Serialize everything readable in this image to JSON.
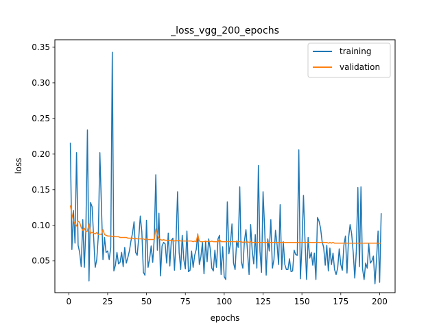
{
  "chart_data": {
    "type": "line",
    "title": "_loss_vgg_200_epochs",
    "xlabel": "epochs",
    "ylabel": "loss",
    "xlim": [
      -8.95,
      209.95
    ],
    "ylim": [
      0.0055,
      0.3605
    ],
    "xticks": [
      0,
      25,
      50,
      75,
      100,
      125,
      150,
      175,
      200
    ],
    "yticks": [
      0.05,
      0.1,
      0.15,
      0.2,
      0.25,
      0.3,
      0.35
    ],
    "ytick_labels": [
      "0.05",
      "0.10",
      "0.15",
      "0.20",
      "0.25",
      "0.30",
      "0.35"
    ],
    "grid": false,
    "legend_position": "top-right",
    "series": [
      {
        "name": "training",
        "color": "#1f77b4",
        "x": [
          1,
          2,
          3,
          4,
          5,
          6,
          7,
          8,
          9,
          10,
          11,
          12,
          13,
          14,
          15,
          16,
          17,
          18,
          19,
          20,
          21,
          22,
          23,
          24,
          25,
          26,
          27,
          28,
          29,
          30,
          31,
          32,
          33,
          34,
          35,
          36,
          37,
          38,
          39,
          40,
          41,
          42,
          43,
          44,
          45,
          46,
          47,
          48,
          49,
          50,
          51,
          52,
          53,
          54,
          55,
          56,
          57,
          58,
          59,
          60,
          61,
          62,
          63,
          64,
          65,
          66,
          67,
          68,
          69,
          70,
          71,
          72,
          73,
          74,
          75,
          76,
          77,
          78,
          79,
          80,
          81,
          82,
          83,
          84,
          85,
          86,
          87,
          88,
          89,
          90,
          91,
          92,
          93,
          94,
          95,
          96,
          97,
          98,
          99,
          100,
          101,
          102,
          103,
          104,
          105,
          106,
          107,
          108,
          109,
          110,
          111,
          112,
          113,
          114,
          115,
          116,
          117,
          118,
          119,
          120,
          121,
          122,
          123,
          124,
          125,
          126,
          127,
          128,
          129,
          130,
          131,
          132,
          133,
          134,
          135,
          136,
          137,
          138,
          139,
          140,
          141,
          142,
          143,
          144,
          145,
          146,
          147,
          148,
          149,
          150,
          151,
          152,
          153,
          154,
          155,
          156,
          157,
          158,
          159,
          160,
          161,
          162,
          163,
          164,
          165,
          166,
          167,
          168,
          169,
          170,
          171,
          172,
          173,
          174,
          175,
          176,
          177,
          178,
          179,
          180,
          181,
          182,
          183,
          184,
          185,
          186,
          187,
          188,
          189,
          190,
          191,
          192,
          193,
          194,
          195,
          196,
          197,
          198,
          199,
          200,
          201
        ],
        "y": [
          0.216,
          0.066,
          0.121,
          0.075,
          0.202,
          0.072,
          0.062,
          0.042,
          0.108,
          0.041,
          0.095,
          0.234,
          0.022,
          0.132,
          0.126,
          0.083,
          0.041,
          0.052,
          0.085,
          0.202,
          0.128,
          0.052,
          0.083,
          0.062,
          0.064,
          0.052,
          0.069,
          0.343,
          0.036,
          0.044,
          0.062,
          0.046,
          0.048,
          0.062,
          0.042,
          0.069,
          0.047,
          0.055,
          0.064,
          0.078,
          0.089,
          0.105,
          0.062,
          0.058,
          0.082,
          0.113,
          0.091,
          0.034,
          0.03,
          0.107,
          0.041,
          0.053,
          0.071,
          0.048,
          0.082,
          0.171,
          0.065,
          0.117,
          0.029,
          0.071,
          0.076,
          0.074,
          0.047,
          0.089,
          0.043,
          0.079,
          0.082,
          0.037,
          0.079,
          0.147,
          0.062,
          0.038,
          0.086,
          0.052,
          0.039,
          0.092,
          0.035,
          0.037,
          0.064,
          0.041,
          0.058,
          0.066,
          0.088,
          0.045,
          0.056,
          0.076,
          0.032,
          0.077,
          0.049,
          0.081,
          0.067,
          0.04,
          0.036,
          0.065,
          0.041,
          0.081,
          0.086,
          0.031,
          0.07,
          0.028,
          0.024,
          0.133,
          0.06,
          0.074,
          0.102,
          0.047,
          0.038,
          0.078,
          0.069,
          0.154,
          0.049,
          0.04,
          0.078,
          0.094,
          0.063,
          0.031,
          0.101,
          0.065,
          0.046,
          0.087,
          0.04,
          0.184,
          0.064,
          0.034,
          0.147,
          0.097,
          0.03,
          0.081,
          0.064,
          0.108,
          0.04,
          0.052,
          0.093,
          0.073,
          0.045,
          0.129,
          0.038,
          0.077,
          0.045,
          0.038,
          0.038,
          0.053,
          0.035,
          0.036,
          0.065,
          0.059,
          0.058,
          0.206,
          0.025,
          0.07,
          0.142,
          0.078,
          0.024,
          0.083,
          0.054,
          0.062,
          0.044,
          0.061,
          0.024,
          0.111,
          0.106,
          0.096,
          0.077,
          0.069,
          0.044,
          0.072,
          0.036,
          0.068,
          0.045,
          0.061,
          0.038,
          0.031,
          0.04,
          0.067,
          0.045,
          0.037,
          0.072,
          0.085,
          0.033,
          0.082,
          0.101,
          0.088,
          0.062,
          0.026,
          0.064,
          0.153,
          0.042,
          0.154,
          0.039,
          0.024,
          0.047,
          0.04,
          0.074,
          0.047,
          0.05,
          0.057,
          0.018,
          0.052,
          0.092,
          0.02,
          0.117
        ]
      },
      {
        "name": "validation",
        "color": "#ff7f0e",
        "x": [
          1,
          2,
          3,
          4,
          5,
          6,
          7,
          8,
          9,
          10,
          11,
          12,
          13,
          14,
          15,
          16,
          17,
          18,
          19,
          20,
          21,
          22,
          23,
          24,
          25,
          26,
          27,
          28,
          29,
          30,
          31,
          32,
          33,
          34,
          35,
          36,
          37,
          38,
          39,
          40,
          41,
          42,
          43,
          44,
          45,
          46,
          47,
          48,
          49,
          50,
          51,
          52,
          53,
          54,
          55,
          56,
          57,
          58,
          59,
          60,
          61,
          62,
          63,
          64,
          65,
          66,
          67,
          68,
          69,
          70,
          71,
          72,
          73,
          74,
          75,
          76,
          77,
          78,
          79,
          80,
          81,
          82,
          83,
          84,
          85,
          86,
          87,
          88,
          89,
          90,
          91,
          92,
          93,
          94,
          95,
          96,
          97,
          98,
          99,
          100,
          101,
          102,
          103,
          104,
          105,
          106,
          107,
          108,
          109,
          110,
          111,
          112,
          113,
          114,
          115,
          116,
          117,
          118,
          119,
          120,
          121,
          122,
          123,
          124,
          125,
          126,
          127,
          128,
          129,
          130,
          131,
          132,
          133,
          134,
          135,
          136,
          137,
          138,
          139,
          140,
          141,
          142,
          143,
          144,
          145,
          146,
          147,
          148,
          149,
          150,
          151,
          152,
          153,
          154,
          155,
          156,
          157,
          158,
          159,
          160,
          161,
          162,
          163,
          164,
          165,
          166,
          167,
          168,
          169,
          170,
          171,
          172,
          173,
          174,
          175,
          176,
          177,
          178,
          179,
          180,
          181,
          182,
          183,
          184,
          185,
          186,
          187,
          188,
          189,
          190,
          191,
          192,
          193,
          194,
          195,
          196,
          197,
          198,
          199,
          200,
          201
        ],
        "y": [
          0.128,
          0.116,
          0.107,
          0.102,
          0.099,
          0.106,
          0.104,
          0.097,
          0.093,
          0.096,
          0.091,
          0.092,
          0.102,
          0.089,
          0.09,
          0.089,
          0.088,
          0.09,
          0.087,
          0.088,
          0.087,
          0.094,
          0.087,
          0.086,
          0.085,
          0.085,
          0.085,
          0.084,
          0.085,
          0.084,
          0.084,
          0.084,
          0.083,
          0.083,
          0.083,
          0.083,
          0.083,
          0.082,
          0.082,
          0.082,
          0.082,
          0.081,
          0.082,
          0.081,
          0.081,
          0.081,
          0.081,
          0.081,
          0.08,
          0.081,
          0.08,
          0.08,
          0.08,
          0.08,
          0.08,
          0.095,
          0.087,
          0.082,
          0.08,
          0.079,
          0.08,
          0.079,
          0.079,
          0.079,
          0.079,
          0.079,
          0.079,
          0.078,
          0.079,
          0.078,
          0.079,
          0.078,
          0.078,
          0.078,
          0.078,
          0.078,
          0.078,
          0.078,
          0.078,
          0.077,
          0.078,
          0.077,
          0.087,
          0.078,
          0.077,
          0.077,
          0.077,
          0.078,
          0.077,
          0.078,
          0.077,
          0.078,
          0.077,
          0.077,
          0.077,
          0.077,
          0.08,
          0.077,
          0.077,
          0.077,
          0.077,
          0.077,
          0.077,
          0.077,
          0.077,
          0.077,
          0.077,
          0.077,
          0.077,
          0.077,
          0.077,
          0.076,
          0.077,
          0.076,
          0.077,
          0.076,
          0.077,
          0.076,
          0.076,
          0.076,
          0.076,
          0.076,
          0.076,
          0.076,
          0.076,
          0.076,
          0.076,
          0.076,
          0.076,
          0.076,
          0.076,
          0.076,
          0.076,
          0.076,
          0.076,
          0.076,
          0.076,
          0.076,
          0.076,
          0.076,
          0.076,
          0.076,
          0.076,
          0.076,
          0.076,
          0.076,
          0.076,
          0.076,
          0.076,
          0.076,
          0.076,
          0.076,
          0.076,
          0.076,
          0.076,
          0.076,
          0.076,
          0.076,
          0.076,
          0.076,
          0.076,
          0.076,
          0.076,
          0.076,
          0.076,
          0.076,
          0.075,
          0.076,
          0.075,
          0.076,
          0.075,
          0.075,
          0.075,
          0.075,
          0.075,
          0.075,
          0.075,
          0.075,
          0.075,
          0.075,
          0.075,
          0.075,
          0.075,
          0.075,
          0.075,
          0.075,
          0.075,
          0.075,
          0.075,
          0.075,
          0.075,
          0.075,
          0.075,
          0.075,
          0.075,
          0.075,
          0.075,
          0.075,
          0.075,
          0.075,
          0.075
        ]
      }
    ]
  }
}
